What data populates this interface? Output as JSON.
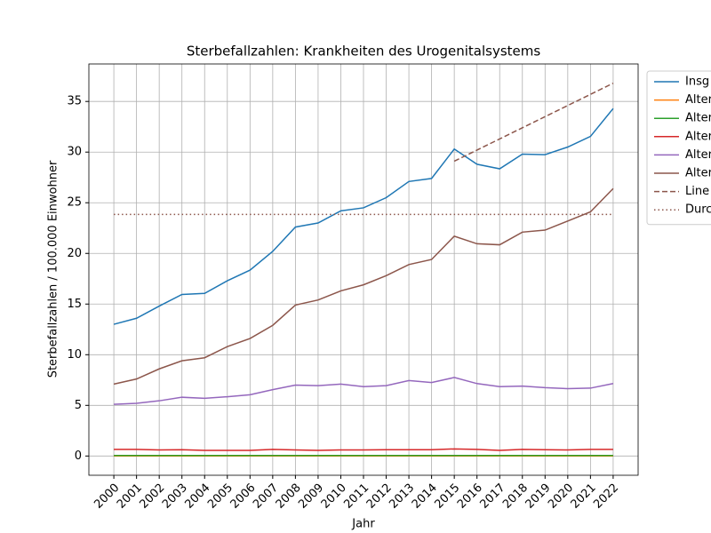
{
  "chart_data": {
    "type": "line",
    "title": "Sterbefallzahlen: Krankheiten des Urogenitalsystems",
    "xlabel": "Jahr",
    "ylabel": "Sterbefallzahlen / 100.000 Einwohner",
    "x": [
      2000,
      2001,
      2002,
      2003,
      2004,
      2005,
      2006,
      2007,
      2008,
      2009,
      2010,
      2011,
      2012,
      2013,
      2014,
      2015,
      2016,
      2017,
      2018,
      2019,
      2020,
      2021,
      2022
    ],
    "xlim": [
      1998.9,
      2023.1
    ],
    "xticks": [
      2000,
      2001,
      2002,
      2003,
      2004,
      2005,
      2006,
      2007,
      2008,
      2009,
      2010,
      2011,
      2012,
      2013,
      2014,
      2015,
      2016,
      2017,
      2018,
      2019,
      2020,
      2021,
      2022
    ],
    "ylim": [
      -1.9,
      38.7
    ],
    "yticks": [
      0,
      5,
      10,
      15,
      20,
      25,
      30,
      35
    ],
    "grid": true,
    "legend": "outside right",
    "series": [
      {
        "name": "Insg",
        "color": "#1f77b4",
        "values": [
          13.0,
          13.6,
          14.8,
          15.95,
          16.05,
          17.3,
          18.35,
          20.2,
          22.6,
          23.0,
          24.2,
          24.5,
          25.5,
          27.1,
          27.4,
          30.3,
          28.8,
          28.35,
          29.8,
          29.75,
          30.5,
          31.55,
          34.3
        ]
      },
      {
        "name": "Alter",
        "color": "#ff7f0e",
        "values": [
          0.01,
          0.01,
          0.01,
          0.01,
          0.01,
          0.01,
          0.01,
          0.01,
          0.01,
          0.01,
          0.01,
          0.01,
          0.01,
          0.01,
          0.01,
          0.01,
          0.01,
          0.01,
          0.01,
          0.01,
          0.01,
          0.01,
          0.01
        ]
      },
      {
        "name": "Alter",
        "color": "#2ca02c",
        "values": [
          0.05,
          0.05,
          0.05,
          0.05,
          0.05,
          0.05,
          0.05,
          0.05,
          0.05,
          0.05,
          0.05,
          0.05,
          0.05,
          0.05,
          0.05,
          0.05,
          0.05,
          0.05,
          0.05,
          0.05,
          0.05,
          0.05,
          0.05
        ]
      },
      {
        "name": "Alter",
        "color": "#d62728",
        "values": [
          0.65,
          0.65,
          0.6,
          0.62,
          0.55,
          0.55,
          0.55,
          0.65,
          0.6,
          0.55,
          0.6,
          0.6,
          0.62,
          0.62,
          0.62,
          0.7,
          0.65,
          0.55,
          0.65,
          0.62,
          0.6,
          0.65,
          0.65
        ]
      },
      {
        "name": "Alter",
        "color": "#9467bd",
        "values": [
          5.1,
          5.2,
          5.45,
          5.8,
          5.7,
          5.85,
          6.05,
          6.55,
          7.0,
          6.95,
          7.1,
          6.85,
          6.95,
          7.45,
          7.25,
          7.75,
          7.15,
          6.85,
          6.9,
          6.75,
          6.65,
          6.7,
          7.15
        ]
      },
      {
        "name": "Alter",
        "color": "#8c564b",
        "values": [
          7.1,
          7.6,
          8.6,
          9.4,
          9.7,
          10.8,
          11.6,
          12.9,
          14.9,
          15.4,
          16.3,
          16.9,
          17.8,
          18.9,
          19.4,
          21.7,
          20.95,
          20.85,
          22.1,
          22.3,
          23.2,
          24.1,
          26.4
        ]
      },
      {
        "name": "Line",
        "color": "#8c564b",
        "dash": "dashed",
        "x": [
          2015,
          2016,
          2017,
          2018,
          2019,
          2020,
          2021,
          2022
        ],
        "values": [
          29.1,
          30.2,
          31.3,
          32.4,
          33.5,
          34.6,
          35.7,
          36.8
        ]
      },
      {
        "name": "Durc",
        "color": "#8c564b",
        "dash": "dotted",
        "x": [
          2000,
          2022
        ],
        "values": [
          23.85,
          23.85
        ]
      }
    ]
  }
}
